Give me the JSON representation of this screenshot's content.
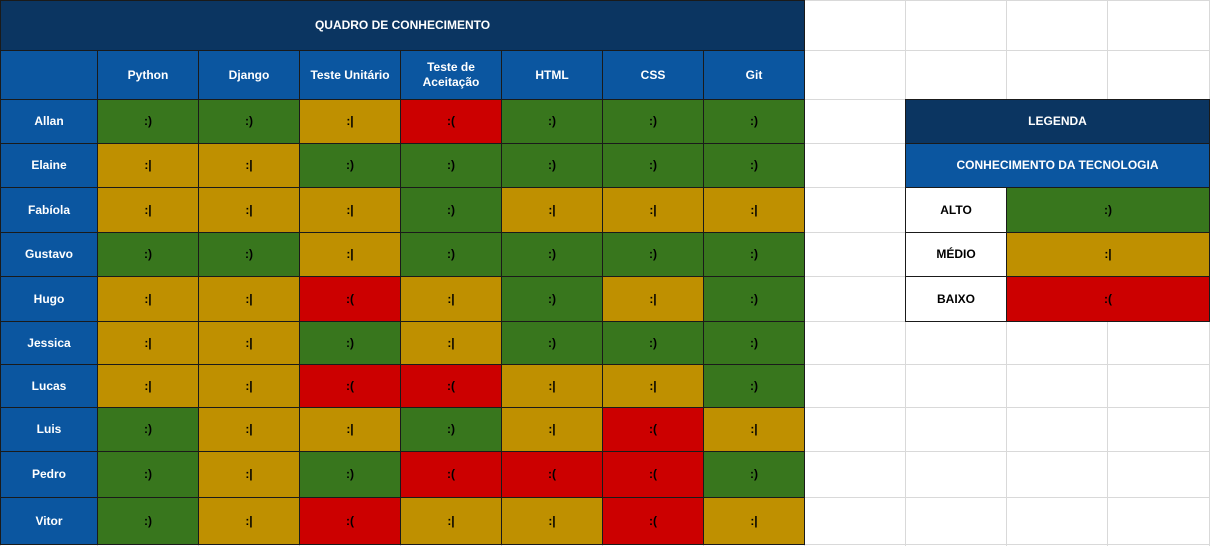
{
  "matrix": {
    "title": "QUADRO DE CONHECIMENTO",
    "columns": [
      "Python",
      "Django",
      "Teste Unitário",
      "Teste de Aceitação",
      "HTML",
      "CSS",
      "Git"
    ],
    "rows": [
      {
        "name": "Allan",
        "levels": [
          "good",
          "good",
          "mid",
          "bad",
          "good",
          "good",
          "good"
        ]
      },
      {
        "name": "Elaine",
        "levels": [
          "mid",
          "mid",
          "good",
          "good",
          "good",
          "good",
          "good"
        ]
      },
      {
        "name": "Fabíola",
        "levels": [
          "mid",
          "mid",
          "mid",
          "good",
          "mid",
          "mid",
          "mid"
        ]
      },
      {
        "name": "Gustavo",
        "levels": [
          "good",
          "good",
          "mid",
          "good",
          "good",
          "good",
          "good"
        ]
      },
      {
        "name": "Hugo",
        "levels": [
          "mid",
          "mid",
          "bad",
          "mid",
          "good",
          "mid",
          "good"
        ]
      },
      {
        "name": "Jessica",
        "levels": [
          "mid",
          "mid",
          "good",
          "mid",
          "good",
          "good",
          "good"
        ]
      },
      {
        "name": "Lucas",
        "levels": [
          "mid",
          "mid",
          "bad",
          "bad",
          "mid",
          "mid",
          "good"
        ]
      },
      {
        "name": "Luis",
        "levels": [
          "good",
          "mid",
          "mid",
          "good",
          "mid",
          "bad",
          "mid"
        ]
      },
      {
        "name": "Pedro",
        "levels": [
          "good",
          "mid",
          "good",
          "bad",
          "bad",
          "bad",
          "good"
        ]
      },
      {
        "name": "Vitor",
        "levels": [
          "good",
          "mid",
          "bad",
          "mid",
          "mid",
          "bad",
          "mid"
        ]
      }
    ]
  },
  "symbols": {
    "good": ":)",
    "mid": ":|",
    "bad": ":("
  },
  "colors": {
    "good": "#38761d",
    "mid": "#bf9000",
    "bad": "#cc0000",
    "header_navy": "#0b3561",
    "header_blue": "#0b56a0"
  },
  "legend": {
    "title": "LEGENDA",
    "subtitle": "CONHECIMENTO DA TECNOLOGIA",
    "items": [
      {
        "label": "ALTO",
        "level": "good",
        "symbol": ":)"
      },
      {
        "label": "MÉDIO",
        "level": "mid",
        "symbol": ":|"
      },
      {
        "label": "BAIXO",
        "level": "bad",
        "symbol": ":("
      }
    ]
  }
}
